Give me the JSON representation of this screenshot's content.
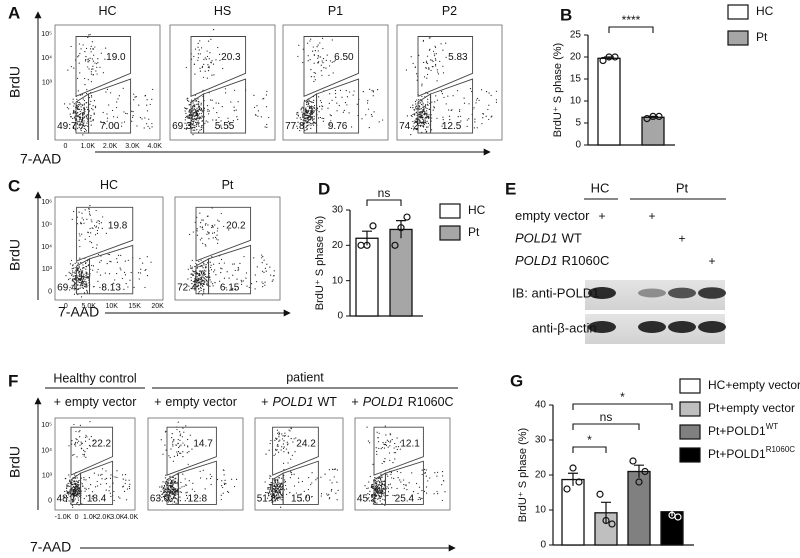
{
  "chart_data": [
    {
      "type": "bar",
      "label": "B",
      "ylabel": "BrdU⁺ S phase (%)",
      "ylim": [
        0,
        25
      ],
      "yticks": [
        0,
        5,
        10,
        15,
        20,
        25
      ],
      "series": [
        {
          "name": "HC",
          "color": "#ffffff",
          "values": [
            19.7
          ],
          "errors": [
            0.3
          ],
          "points": [
            19.2,
            20,
            20
          ]
        },
        {
          "name": "Pt",
          "color": "#a6a6a6",
          "values": [
            6.3
          ],
          "errors": [
            0.2
          ],
          "points": [
            6,
            6.5,
            6.5
          ]
        }
      ],
      "significance": [
        "****"
      ]
    },
    {
      "type": "bar",
      "label": "D",
      "ylabel": "BrdU⁺ S phase (%)",
      "ylim": [
        0,
        30
      ],
      "yticks": [
        0,
        10,
        20,
        30
      ],
      "series": [
        {
          "name": "HC",
          "color": "#ffffff",
          "values": [
            22
          ],
          "errors": [
            2
          ],
          "points": [
            20,
            20,
            25.5
          ]
        },
        {
          "name": "Pt",
          "color": "#a6a6a6",
          "values": [
            24.5
          ],
          "errors": [
            2.5
          ],
          "points": [
            20,
            25,
            28
          ]
        }
      ],
      "significance": [
        "ns"
      ]
    },
    {
      "type": "bar",
      "label": "G",
      "ylabel": "BrdU⁺ S phase (%)",
      "ylim": [
        0,
        40
      ],
      "yticks": [
        0,
        10,
        20,
        30,
        40
      ],
      "series": [
        {
          "name": "HC+empty vector",
          "color": "#ffffff",
          "values": [
            18.7
          ],
          "errors": [
            1.8
          ],
          "points": [
            16,
            22,
            18
          ]
        },
        {
          "name": "Pt+empty vector",
          "color": "#bfbfbf",
          "values": [
            9.2
          ],
          "errors": [
            3
          ],
          "points": [
            14.5,
            7,
            6
          ]
        },
        {
          "name": "Pt+POLD1",
          "name_sup": "WT",
          "color": "#808080",
          "values": [
            21
          ],
          "errors": [
            1.8
          ],
          "points": [
            24,
            18,
            21
          ]
        },
        {
          "name": "Pt+POLD1",
          "name_sup": "R1060C",
          "color": "#000000",
          "values": [
            9.5
          ],
          "errors": [
            1.3
          ],
          "points": [
            12,
            8.5,
            8
          ]
        }
      ],
      "significance": [
        "*",
        "ns",
        "*"
      ]
    }
  ],
  "flow_panels": [
    {
      "label": "A",
      "ylabel": "BrdU",
      "xlabel": "7-AAD",
      "yticks": [
        "10⁵",
        "10⁴",
        "10³"
      ],
      "xticks": [
        "0",
        "1.0K",
        "2.0K",
        "3.0K",
        "4.0K"
      ],
      "plots": [
        {
          "title": "HC",
          "gates": [
            "19.0",
            "49.7",
            "7.00"
          ]
        },
        {
          "title": "HS",
          "gates": [
            "20.3",
            "69.3",
            "5.55"
          ]
        },
        {
          "title": "P1",
          "gates": [
            "6.50",
            "77.8",
            "9.76"
          ]
        },
        {
          "title": "P2",
          "gates": [
            "5.83",
            "74.2",
            "12.5"
          ]
        }
      ]
    },
    {
      "label": "C",
      "ylabel": "BrdU",
      "xlabel": "7-AAD",
      "yticks": [
        "10⁶",
        "10⁵",
        "10⁴",
        "10³",
        "0"
      ],
      "xticks": [
        "0",
        "5.0K",
        "10K",
        "15K",
        "20K"
      ],
      "plots": [
        {
          "title": "HC",
          "gates": [
            "19.8",
            "69.4",
            "8.13"
          ]
        },
        {
          "title": "Pt",
          "gates": [
            "20.2",
            "72.4",
            "6.15"
          ]
        }
      ]
    },
    {
      "label": "F",
      "ylabel": "BrdU",
      "xlabel": "7-AAD",
      "yticks": [
        "10⁵",
        "10⁴",
        "10³",
        "0"
      ],
      "xticks": [
        "-1.0K",
        "0",
        "1.0K",
        "2.0K",
        "3.0K",
        "4.0K"
      ],
      "headers": [
        "Healthy control",
        "patient"
      ],
      "plots": [
        {
          "prefix": "+",
          "title": "empty vector",
          "gates": [
            "22.2",
            "48.7",
            "18.4"
          ]
        },
        {
          "prefix": "+",
          "title": "empty vector",
          "gates": [
            "14.7",
            "63.0",
            "12.8"
          ]
        },
        {
          "prefix": "+",
          "gene": "POLD1",
          "variant": "WT",
          "gates": [
            "24.2",
            "51.8",
            "15.0"
          ]
        },
        {
          "prefix": "+",
          "gene": "POLD1",
          "variant": "R1060C",
          "gates": [
            "12.1",
            "45.2",
            "25.4"
          ]
        }
      ]
    }
  ],
  "western_blot": {
    "label": "E",
    "groups": [
      "HC",
      "Pt"
    ],
    "rows": [
      {
        "text": "empty vector",
        "plus": [
          "+",
          "+"
        ]
      },
      {
        "gene": "POLD1",
        "variant": "WT",
        "plus": [
          "+"
        ]
      },
      {
        "gene": "POLD1",
        "variant": "R1060C",
        "plus": [
          "+"
        ]
      }
    ],
    "antibodies": [
      "IB: anti-POLD1",
      "anti-β-actin"
    ]
  }
}
